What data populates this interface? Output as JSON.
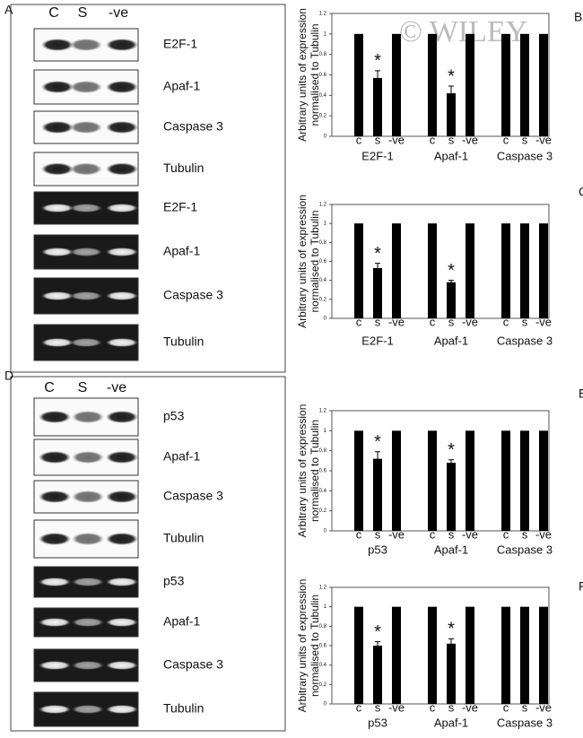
{
  "watermark": "© WILEY",
  "panels": [
    {
      "label": "A",
      "lanes": [
        "C",
        "S",
        "-ve"
      ],
      "bands": [
        "E2F-1",
        "Apaf-1",
        "Caspase 3",
        "Tubulin",
        "E2F-1",
        "Apaf-1",
        "Caspase 3",
        "Tubulin"
      ]
    },
    {
      "label": "D",
      "lanes": [
        "C",
        "S",
        "-ve"
      ],
      "bands": [
        "p53",
        "Apaf-1",
        "Caspase 3",
        "Tubulin",
        "p53",
        "Apaf-1",
        "Caspase 3",
        "Tubulin"
      ]
    }
  ],
  "chart_data": [
    {
      "type": "bar",
      "panel": "B",
      "ylabel": [
        "Arbitrary units of expression",
        "normalised to Tubulin"
      ],
      "categories": [
        "c",
        "s",
        "-ve",
        "c",
        "s",
        "-ve",
        "c",
        "s",
        "-ve"
      ],
      "groups": [
        "E2F-1",
        "Apaf-1",
        "Caspase 3"
      ],
      "values": [
        1,
        0.57,
        1,
        1,
        0.42,
        1,
        1,
        1,
        1
      ],
      "errors": [
        null,
        0.07,
        null,
        null,
        0.07,
        null,
        null,
        null,
        null
      ],
      "significance": [
        null,
        "*",
        null,
        null,
        "*",
        null,
        null,
        null,
        null
      ],
      "ylim": [
        0,
        1.2
      ],
      "yticks": [
        0,
        0.2,
        0.4,
        0.6,
        0.8,
        1,
        1.2
      ],
      "color": "#000000"
    },
    {
      "type": "bar",
      "panel": "C",
      "ylabel": [
        "Arbitrary units of expression",
        "normalised to Tubulin"
      ],
      "categories": [
        "c",
        "s",
        "-ve",
        "c",
        "s",
        "-ve",
        "c",
        "s",
        "-ve"
      ],
      "groups": [
        "E2F-1",
        "Apaf-1",
        "Caspase 3"
      ],
      "values": [
        1,
        0.53,
        1,
        1,
        0.38,
        1,
        1,
        1,
        1
      ],
      "errors": [
        null,
        0.05,
        null,
        null,
        0.02,
        null,
        null,
        null,
        null
      ],
      "significance": [
        null,
        "*",
        null,
        null,
        "*",
        null,
        null,
        null,
        null
      ],
      "ylim": [
        0,
        1.2
      ],
      "yticks": [
        0,
        0.2,
        0.4,
        0.6,
        0.8,
        1,
        1.2
      ],
      "color": "#000000"
    },
    {
      "type": "bar",
      "panel": "E",
      "ylabel": [
        "Arbitrary units of expression",
        "normalised to Tubulin"
      ],
      "categories": [
        "c",
        "s",
        "-ve",
        "c",
        "s",
        "-ve",
        "c",
        "s",
        "-ve"
      ],
      "groups": [
        "p53",
        "Apaf-1",
        "Caspase 3"
      ],
      "values": [
        1,
        0.72,
        1,
        1,
        0.68,
        1,
        1,
        1,
        1
      ],
      "errors": [
        null,
        0.07,
        null,
        null,
        0.03,
        null,
        null,
        null,
        null
      ],
      "significance": [
        null,
        "*",
        null,
        null,
        "*",
        null,
        null,
        null,
        null
      ],
      "ylim": [
        0,
        1.2
      ],
      "yticks": [
        0,
        0.2,
        0.4,
        0.6,
        0.8,
        1,
        1.2
      ],
      "color": "#000000"
    },
    {
      "type": "bar",
      "panel": "F",
      "ylabel": [
        "Arbitrary units of expression",
        "normalised to Tubulin"
      ],
      "categories": [
        "c",
        "s",
        "-ve",
        "c",
        "s",
        "-ve",
        "c",
        "s",
        "-ve"
      ],
      "groups": [
        "p53",
        "Apaf-1",
        "Caspase 3"
      ],
      "values": [
        1,
        0.6,
        1,
        1,
        0.62,
        1,
        1,
        1,
        1
      ],
      "errors": [
        null,
        0.04,
        null,
        null,
        0.05,
        null,
        null,
        null,
        null
      ],
      "significance": [
        null,
        "*",
        null,
        null,
        "*",
        null,
        null,
        null,
        null
      ],
      "ylim": [
        0,
        1.2
      ],
      "yticks": [
        0,
        0.2,
        0.4,
        0.6,
        0.8,
        1,
        1.2
      ],
      "color": "#000000"
    }
  ]
}
